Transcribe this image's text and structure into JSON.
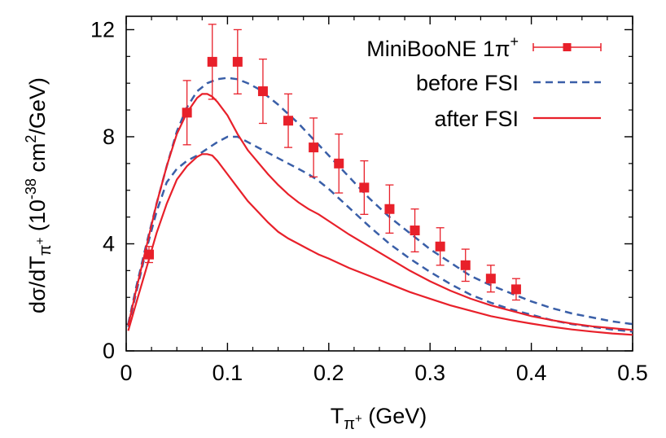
{
  "chart_data": {
    "type": "line",
    "title": "",
    "xlabel": {
      "base": "T",
      "sub": "π",
      "subsup": "+",
      "unit": " (GeV)"
    },
    "ylabel": {
      "prefix": "dσ/dT",
      "sub": "π",
      "subsup": "+",
      "unit_open": "  (10",
      "unit_exp": "-38",
      "unit_mid": " cm",
      "unit_exp2": "2",
      "unit_close": "/GeV)"
    },
    "xlim": [
      0,
      0.5
    ],
    "ylim": [
      0,
      12.5
    ],
    "xticks": [
      0,
      0.1,
      0.2,
      0.3,
      0.4,
      0.5
    ],
    "xtick_labels": [
      "0",
      "0.1",
      "0.2",
      "0.3",
      "0.4",
      "0.5"
    ],
    "yticks": [
      0,
      4,
      8,
      12
    ],
    "ytick_labels": [
      "0",
      "4",
      "8",
      "12"
    ],
    "grid": false,
    "legend_position": "top-right",
    "legend": [
      {
        "label": "MiniBooNE 1π",
        "label_sup": "+",
        "style": "points",
        "color": "#e8202a"
      },
      {
        "label": "before FSI",
        "style": "dashed",
        "color": "#3a5fa8"
      },
      {
        "label": "after FSI",
        "style": "solid",
        "color": "#e8202a"
      }
    ],
    "series": [
      {
        "name": "MiniBooNE 1π+",
        "style": "points",
        "color": "#e8202a",
        "x": [
          0.0225,
          0.06,
          0.085,
          0.11,
          0.135,
          0.16,
          0.185,
          0.21,
          0.235,
          0.26,
          0.285,
          0.31,
          0.335,
          0.36,
          0.385
        ],
        "y": [
          3.6,
          8.9,
          10.8,
          10.8,
          9.7,
          8.6,
          7.6,
          7.0,
          6.1,
          5.3,
          4.5,
          3.9,
          3.2,
          2.7,
          2.3
        ],
        "err": [
          0.3,
          1.2,
          1.4,
          1.2,
          1.2,
          1.0,
          1.1,
          1.1,
          1.0,
          0.9,
          0.8,
          0.7,
          0.6,
          0.5,
          0.4
        ]
      },
      {
        "name": "before FSI",
        "style": "dashed",
        "color": "#3a5fa8",
        "x": [
          0.002,
          0.01,
          0.02,
          0.03,
          0.04,
          0.05,
          0.06,
          0.07,
          0.08,
          0.09,
          0.1,
          0.11,
          0.12,
          0.13,
          0.14,
          0.15,
          0.16,
          0.17,
          0.18,
          0.19,
          0.2,
          0.22,
          0.24,
          0.26,
          0.28,
          0.3,
          0.32,
          0.34,
          0.36,
          0.38,
          0.4,
          0.42,
          0.44,
          0.46,
          0.48,
          0.5
        ],
        "y": [
          1.0,
          2.4,
          4.0,
          5.5,
          6.9,
          8.2,
          9.1,
          9.7,
          10.0,
          10.15,
          10.2,
          10.15,
          10.0,
          9.8,
          9.5,
          9.2,
          8.85,
          8.5,
          8.1,
          7.7,
          7.3,
          6.5,
          5.7,
          5.0,
          4.4,
          3.8,
          3.3,
          2.8,
          2.45,
          2.15,
          1.85,
          1.6,
          1.4,
          1.25,
          1.1,
          1.0
        ]
      },
      {
        "name": "before FSI (lower)",
        "style": "dashed",
        "color": "#3a5fa8",
        "x": [
          0.002,
          0.01,
          0.02,
          0.03,
          0.04,
          0.05,
          0.06,
          0.07,
          0.08,
          0.09,
          0.1,
          0.11,
          0.12,
          0.13,
          0.14,
          0.15,
          0.16,
          0.17,
          0.18,
          0.19,
          0.2,
          0.22,
          0.24,
          0.26,
          0.28,
          0.3,
          0.32,
          0.34,
          0.36,
          0.38,
          0.4,
          0.42,
          0.44,
          0.46,
          0.48,
          0.5
        ],
        "y": [
          0.9,
          2.2,
          3.8,
          5.2,
          6.3,
          6.8,
          7.1,
          7.3,
          7.55,
          7.8,
          8.0,
          8.0,
          7.8,
          7.6,
          7.4,
          7.2,
          7.0,
          6.8,
          6.6,
          6.35,
          6.05,
          5.35,
          4.65,
          4.0,
          3.45,
          2.95,
          2.5,
          2.1,
          1.8,
          1.55,
          1.35,
          1.15,
          1.0,
          0.9,
          0.8,
          0.72
        ]
      },
      {
        "name": "after FSI",
        "style": "solid",
        "color": "#e8202a",
        "x": [
          0.002,
          0.01,
          0.02,
          0.03,
          0.04,
          0.05,
          0.06,
          0.07,
          0.075,
          0.08,
          0.085,
          0.09,
          0.1,
          0.11,
          0.12,
          0.13,
          0.14,
          0.15,
          0.16,
          0.17,
          0.18,
          0.19,
          0.2,
          0.22,
          0.24,
          0.26,
          0.28,
          0.3,
          0.32,
          0.34,
          0.36,
          0.38,
          0.4,
          0.42,
          0.44,
          0.46,
          0.48,
          0.5
        ],
        "y": [
          0.95,
          2.3,
          3.9,
          5.5,
          6.9,
          8.1,
          8.9,
          9.45,
          9.6,
          9.6,
          9.5,
          9.3,
          8.8,
          8.1,
          7.5,
          7.05,
          6.6,
          6.2,
          5.85,
          5.55,
          5.3,
          5.1,
          4.85,
          4.35,
          3.9,
          3.45,
          3.0,
          2.6,
          2.25,
          1.95,
          1.7,
          1.5,
          1.3,
          1.15,
          1.02,
          0.92,
          0.85,
          0.78
        ]
      },
      {
        "name": "after FSI (lower)",
        "style": "solid",
        "color": "#e8202a",
        "x": [
          0.002,
          0.01,
          0.02,
          0.03,
          0.04,
          0.05,
          0.06,
          0.07,
          0.075,
          0.08,
          0.085,
          0.09,
          0.1,
          0.11,
          0.12,
          0.13,
          0.14,
          0.15,
          0.16,
          0.17,
          0.18,
          0.19,
          0.2,
          0.22,
          0.24,
          0.26,
          0.28,
          0.3,
          0.32,
          0.34,
          0.36,
          0.38,
          0.4,
          0.42,
          0.44,
          0.46,
          0.48,
          0.5
        ],
        "y": [
          0.75,
          1.8,
          3.1,
          4.4,
          5.5,
          6.4,
          6.9,
          7.25,
          7.35,
          7.35,
          7.3,
          7.1,
          6.6,
          6.1,
          5.6,
          5.2,
          4.8,
          4.45,
          4.2,
          4.0,
          3.8,
          3.6,
          3.45,
          3.1,
          2.8,
          2.5,
          2.2,
          1.95,
          1.7,
          1.5,
          1.3,
          1.15,
          1.02,
          0.9,
          0.8,
          0.72,
          0.65,
          0.6
        ]
      }
    ]
  }
}
